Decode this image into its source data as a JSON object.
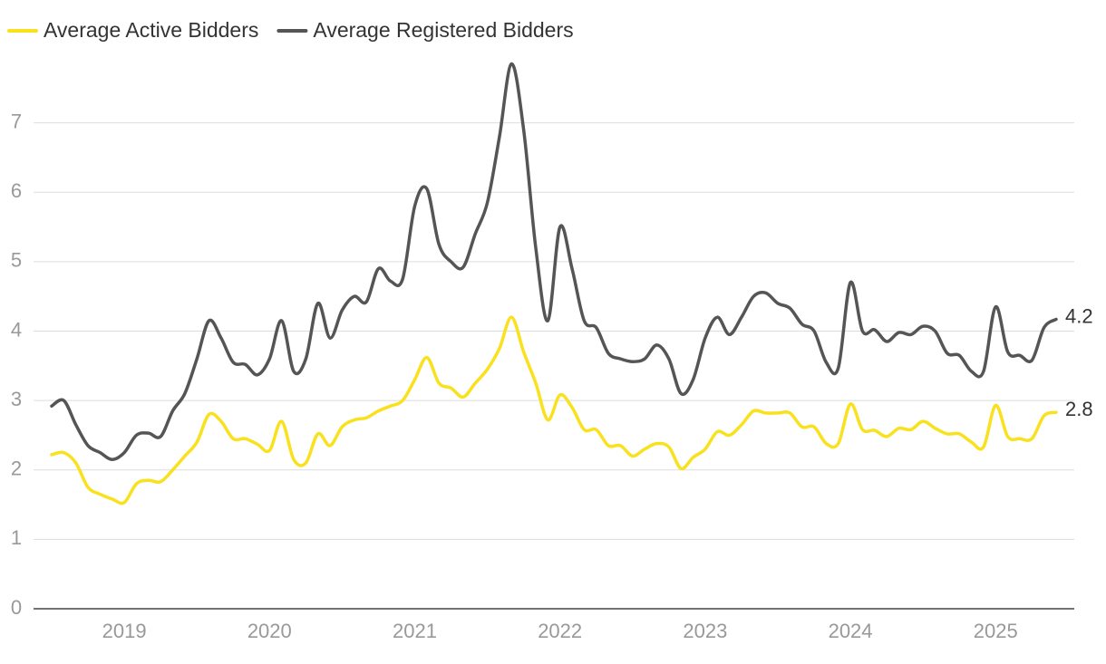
{
  "chart_data": {
    "type": "line",
    "categories": [
      null,
      null,
      null,
      null,
      null,
      null,
      "2019",
      null,
      null,
      null,
      null,
      null,
      null,
      null,
      null,
      null,
      null,
      null,
      "2020",
      null,
      null,
      null,
      null,
      null,
      null,
      null,
      null,
      null,
      null,
      null,
      "2021",
      null,
      null,
      null,
      null,
      null,
      null,
      null,
      null,
      null,
      null,
      null,
      "2022",
      null,
      null,
      null,
      null,
      null,
      null,
      null,
      null,
      null,
      null,
      null,
      "2023",
      null,
      null,
      null,
      null,
      null,
      null,
      null,
      null,
      null,
      null,
      null,
      "2024",
      null,
      null,
      null,
      null,
      null,
      null,
      null,
      null,
      null,
      null,
      null,
      "2025",
      null,
      null,
      null,
      null,
      null
    ],
    "series": [
      {
        "name": "Average Active Bidders",
        "color": "#f9e11e",
        "end_label": "2.8",
        "values": [
          2.22,
          2.25,
          2.1,
          1.75,
          1.65,
          1.58,
          1.53,
          1.8,
          1.85,
          1.83,
          2.0,
          2.2,
          2.4,
          2.8,
          2.7,
          2.45,
          2.45,
          2.37,
          2.28,
          2.7,
          2.15,
          2.1,
          2.52,
          2.35,
          2.62,
          2.72,
          2.75,
          2.85,
          2.92,
          3.0,
          3.3,
          3.62,
          3.25,
          3.18,
          3.05,
          3.25,
          3.45,
          3.75,
          4.2,
          3.7,
          3.25,
          2.72,
          3.08,
          2.9,
          2.58,
          2.58,
          2.35,
          2.35,
          2.2,
          2.3,
          2.38,
          2.33,
          2.02,
          2.18,
          2.3,
          2.55,
          2.5,
          2.65,
          2.85,
          2.82,
          2.82,
          2.82,
          2.62,
          2.62,
          2.38,
          2.38,
          2.95,
          2.58,
          2.57,
          2.48,
          2.6,
          2.58,
          2.7,
          2.6,
          2.52,
          2.52,
          2.4,
          2.33,
          2.93,
          2.48,
          2.45,
          2.45,
          2.78,
          2.83
        ]
      },
      {
        "name": "Average Registered Bidders",
        "color": "#555555",
        "end_label": "4.2",
        "values": [
          2.92,
          3.0,
          2.65,
          2.35,
          2.25,
          2.15,
          2.25,
          2.5,
          2.53,
          2.48,
          2.85,
          3.1,
          3.6,
          4.15,
          3.9,
          3.55,
          3.52,
          3.37,
          3.6,
          4.15,
          3.42,
          3.6,
          4.4,
          3.9,
          4.3,
          4.5,
          4.42,
          4.9,
          4.72,
          4.75,
          5.8,
          6.05,
          5.25,
          5.0,
          4.92,
          5.4,
          5.85,
          6.8,
          7.85,
          6.9,
          5.2,
          4.15,
          5.5,
          4.9,
          4.15,
          4.05,
          3.68,
          3.6,
          3.56,
          3.6,
          3.8,
          3.6,
          3.1,
          3.3,
          3.9,
          4.2,
          3.95,
          4.2,
          4.5,
          4.55,
          4.4,
          4.33,
          4.1,
          4.0,
          3.55,
          3.47,
          4.7,
          4.0,
          4.02,
          3.85,
          3.98,
          3.95,
          4.07,
          4.0,
          3.68,
          3.65,
          3.42,
          3.42,
          4.35,
          3.7,
          3.65,
          3.58,
          4.05,
          4.17
        ]
      }
    ],
    "ylim": [
      0,
      8
    ],
    "yticks": [
      0,
      1,
      2,
      3,
      4,
      5,
      6,
      7
    ],
    "grid": true,
    "legend": "top-left"
  }
}
